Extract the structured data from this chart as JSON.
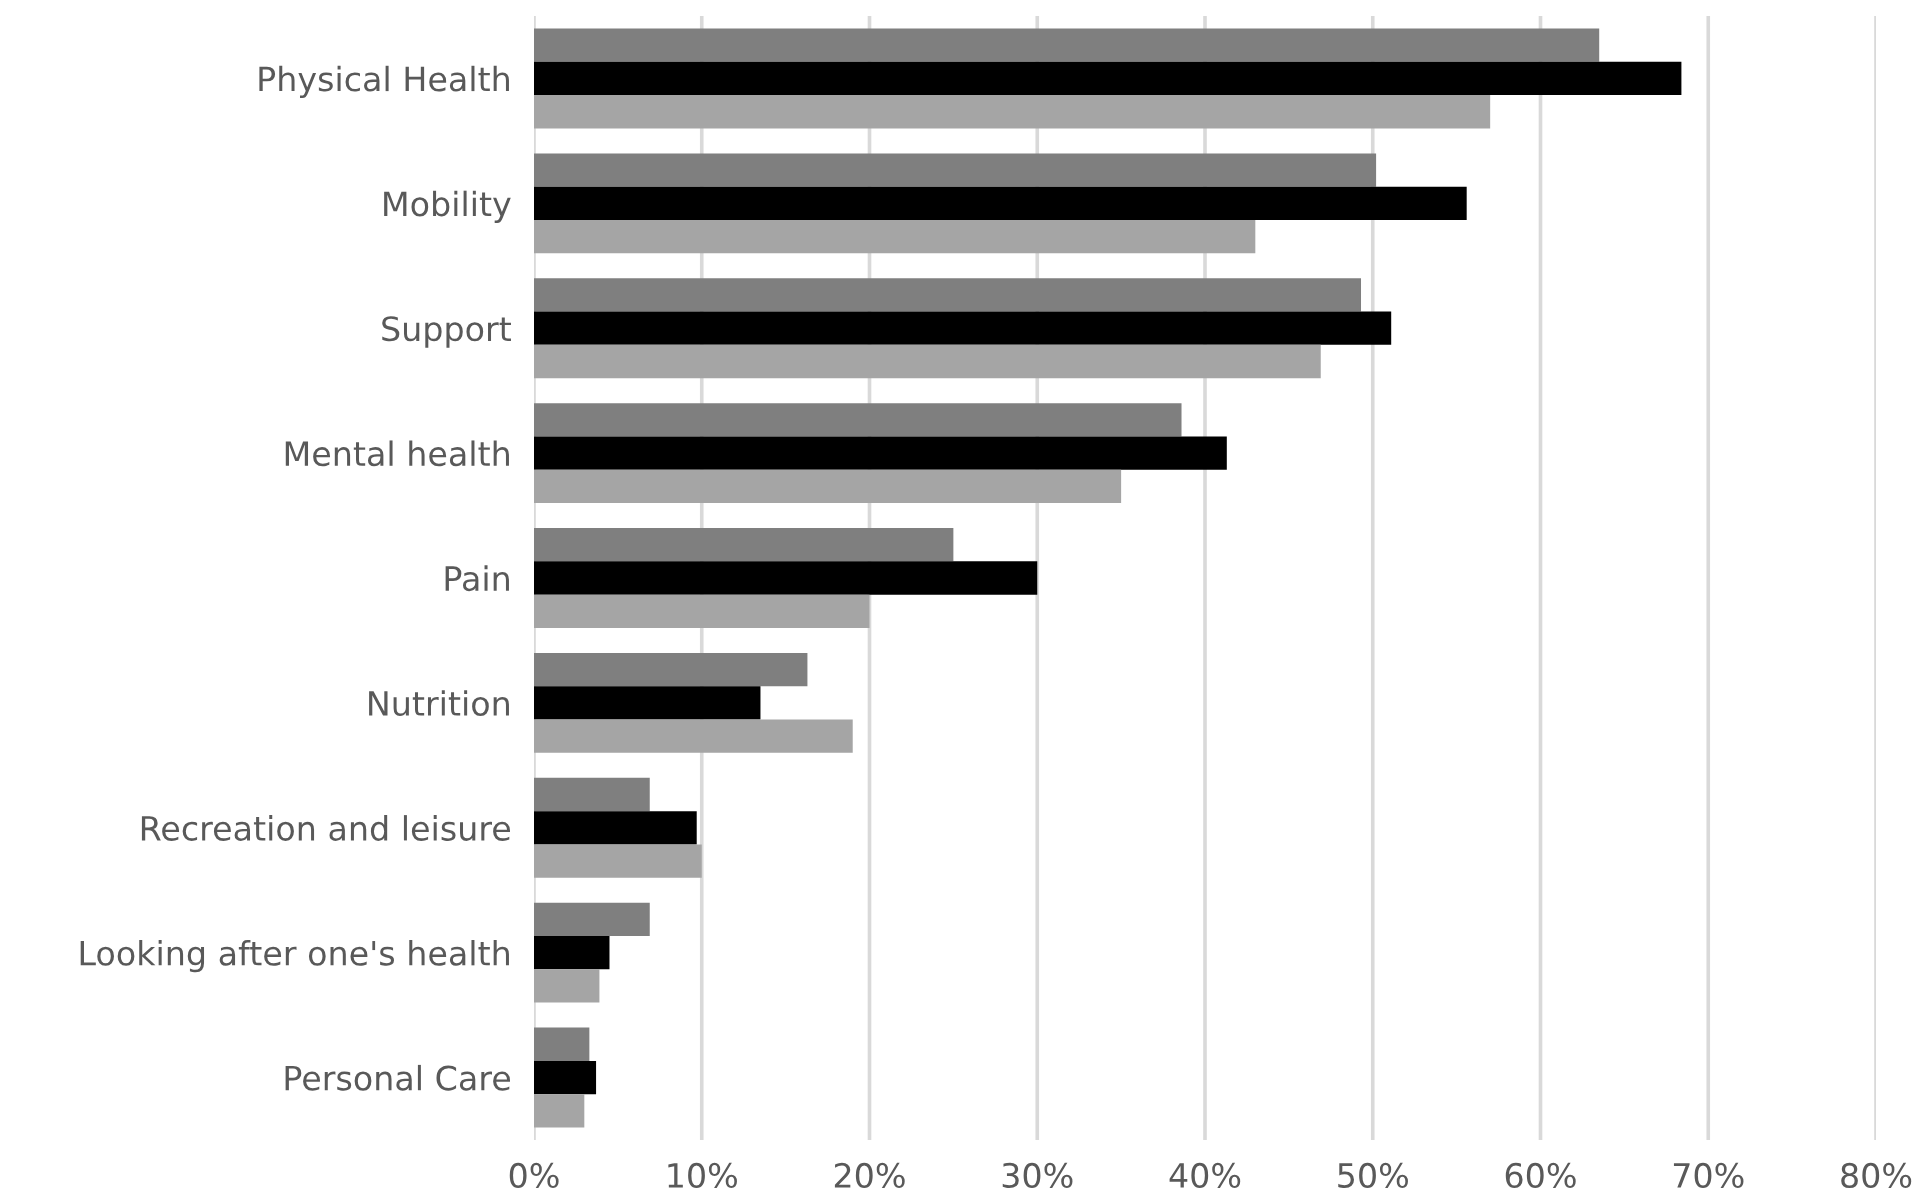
{
  "chart_data": {
    "type": "bar",
    "orientation": "horizontal",
    "categories": [
      "Physical Health",
      "Mobility",
      "Support",
      "Mental health",
      "Pain",
      "Nutrition",
      "Recreation and leisure",
      "Looking after one's health",
      "Personal Care"
    ],
    "series": [
      {
        "color": "#7f7f7f",
        "values": [
          63.5,
          50.2,
          49.3,
          38.6,
          25.0,
          16.3,
          6.9,
          6.9,
          3.3
        ]
      },
      {
        "color": "#000000",
        "values": [
          68.4,
          55.6,
          51.1,
          41.3,
          30.0,
          13.5,
          9.7,
          4.5,
          3.7
        ]
      },
      {
        "color": "#a5a5a5",
        "values": [
          57.0,
          43.0,
          46.9,
          35.0,
          20.0,
          19.0,
          10.0,
          3.9,
          3.0
        ]
      }
    ],
    "xlim": [
      0,
      80
    ],
    "xticks": [
      {
        "value": 0,
        "label": "0%"
      },
      {
        "value": 10,
        "label": "10%"
      },
      {
        "value": 20,
        "label": "20%"
      },
      {
        "value": 30,
        "label": "30%"
      },
      {
        "value": 40,
        "label": "40%"
      },
      {
        "value": 50,
        "label": "50%"
      },
      {
        "value": 60,
        "label": "60%"
      },
      {
        "value": 70,
        "label": "70%"
      },
      {
        "value": 80,
        "label": "80%"
      }
    ],
    "grid": "x",
    "legend": false
  }
}
